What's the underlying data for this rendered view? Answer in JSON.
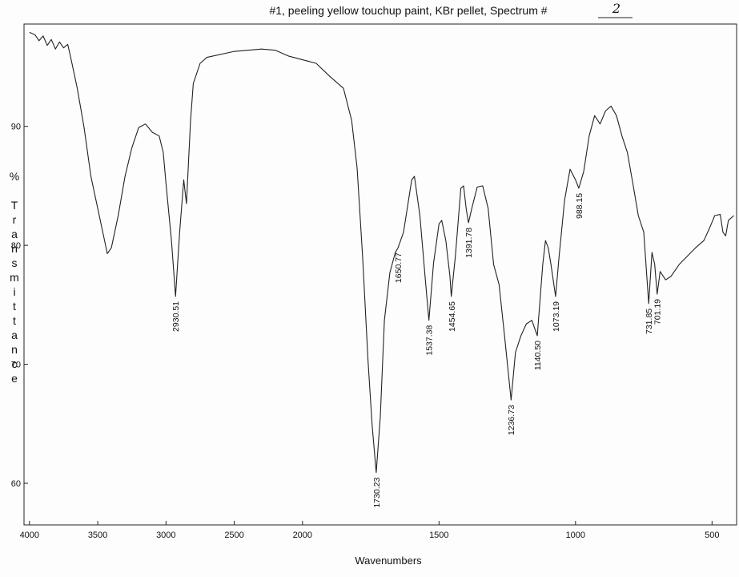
{
  "chart_data": {
    "type": "line",
    "title": "#1, peeling yellow touchup paint, KBr pellet, Spectrum #",
    "spectrum_number": "2",
    "x_label": "Wavenumbers",
    "y_label": "% Transmittance",
    "color": "#222222",
    "xlim": [
      4040,
      410
    ],
    "x_scale_break": 2000,
    "x_scale_factor_below_break": 2,
    "xticks": [
      4000,
      3500,
      3000,
      2500,
      2000,
      1500,
      1000,
      500
    ],
    "ylim": [
      56.5,
      98.6
    ],
    "yticks": [
      60,
      70,
      80,
      90
    ],
    "x": [
      4000,
      3960,
      3930,
      3900,
      3870,
      3840,
      3810,
      3780,
      3750,
      3720,
      3700,
      3650,
      3600,
      3550,
      3500,
      3450,
      3430,
      3400,
      3350,
      3300,
      3250,
      3200,
      3150,
      3100,
      3050,
      3020,
      3000,
      2960,
      2930,
      2900,
      2870,
      2850,
      2820,
      2800,
      2750,
      2700,
      2500,
      2300,
      2200,
      2100,
      2000,
      1950,
      1900,
      1850,
      1820,
      1800,
      1780,
      1760,
      1745,
      1730,
      1715,
      1700,
      1680,
      1660,
      1650,
      1630,
      1600,
      1590,
      1570,
      1550,
      1537,
      1520,
      1500,
      1490,
      1475,
      1460,
      1455,
      1440,
      1420,
      1410,
      1400,
      1392,
      1380,
      1360,
      1340,
      1320,
      1300,
      1280,
      1260,
      1236,
      1220,
      1200,
      1180,
      1160,
      1140,
      1120,
      1110,
      1100,
      1090,
      1073,
      1060,
      1040,
      1020,
      1000,
      988,
      970,
      950,
      930,
      910,
      890,
      870,
      850,
      830,
      810,
      790,
      770,
      750,
      732,
      720,
      710,
      701,
      690,
      670,
      650,
      620,
      590,
      560,
      530,
      510,
      490,
      470,
      460,
      450,
      440,
      420
    ],
    "values": [
      97.9,
      97.7,
      97.2,
      97.6,
      96.8,
      97.3,
      96.5,
      97.1,
      96.6,
      96.9,
      95.9,
      93.2,
      89.9,
      85.8,
      83.1,
      80.4,
      79.3,
      79.8,
      82.5,
      85.8,
      88.2,
      89.9,
      90.2,
      89.5,
      89.2,
      87.8,
      85.2,
      80.4,
      75.7,
      81.1,
      85.5,
      83.5,
      90.5,
      93.6,
      95.3,
      95.8,
      96.3,
      96.5,
      96.4,
      95.9,
      95.6,
      95.3,
      94.2,
      93.2,
      90.5,
      86.5,
      79.1,
      70.3,
      64.9,
      60.9,
      65.6,
      73.7,
      77.7,
      79.4,
      79.8,
      81.1,
      85.5,
      85.8,
      82.5,
      77.1,
      73.7,
      78.5,
      81.8,
      82.1,
      80.4,
      77.4,
      75.7,
      79.1,
      84.8,
      85.0,
      83.0,
      81.9,
      83.1,
      84.9,
      85.0,
      83.1,
      78.4,
      76.7,
      72.4,
      67.0,
      71.0,
      72.4,
      73.4,
      73.7,
      72.4,
      78.4,
      80.4,
      79.8,
      78.4,
      75.7,
      79.1,
      83.8,
      86.4,
      85.5,
      84.8,
      86.2,
      89.2,
      90.9,
      90.2,
      91.3,
      91.7,
      90.9,
      89.2,
      87.8,
      85.2,
      82.5,
      81.1,
      75.1,
      79.4,
      78.4,
      75.9,
      77.8,
      77.1,
      77.4,
      78.4,
      79.1,
      79.8,
      80.4,
      81.4,
      82.5,
      82.6,
      81.1,
      80.8,
      82.1,
      82.5
    ],
    "peaks": [
      {
        "x": 2930.51,
        "y": 75.7,
        "label": "2930.51"
      },
      {
        "x": 1730.23,
        "y": 60.9,
        "label": "1730.23"
      },
      {
        "x": 1650.77,
        "y": 79.8,
        "label": "1650.77"
      },
      {
        "x": 1537.38,
        "y": 73.7,
        "label": "1537.38"
      },
      {
        "x": 1454.65,
        "y": 75.7,
        "label": "1454.65"
      },
      {
        "x": 1391.78,
        "y": 81.9,
        "label": "1391.78"
      },
      {
        "x": 1236.73,
        "y": 67.0,
        "label": "1236.73"
      },
      {
        "x": 1140.5,
        "y": 72.4,
        "label": "1140.50"
      },
      {
        "x": 1073.19,
        "y": 75.7,
        "label": "1073.19"
      },
      {
        "x": 988.15,
        "y": 84.8,
        "label": "988.15"
      },
      {
        "x": 731.85,
        "y": 75.1,
        "label": "731.85"
      },
      {
        "x": 701.19,
        "y": 75.9,
        "label": "701.19"
      }
    ]
  }
}
